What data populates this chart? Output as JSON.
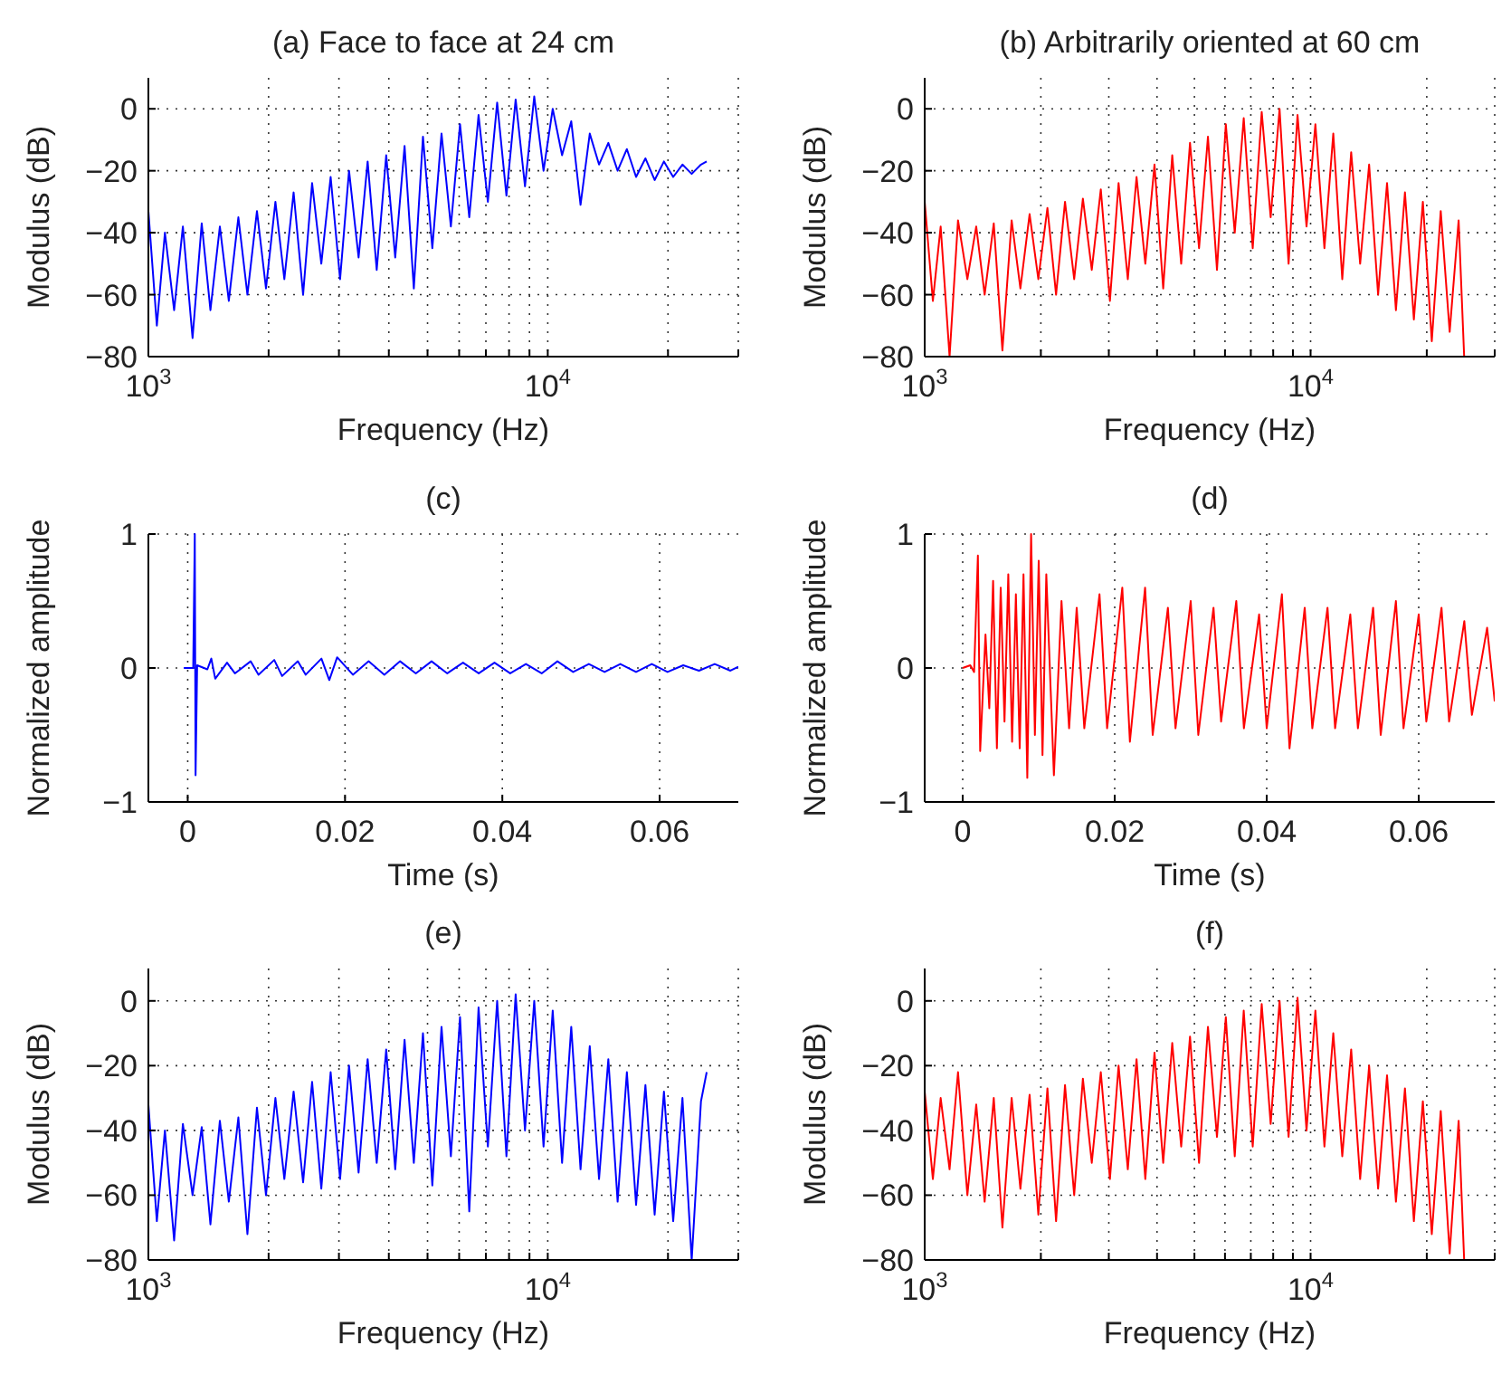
{
  "chart_data": [
    {
      "type": "line",
      "title": "(a) Face to face at 24 cm",
      "xlabel": "Frequency (Hz)",
      "ylabel": "Modulus (dB)",
      "log": "x",
      "grid": true,
      "xlim": [
        1000,
        30000
      ],
      "ylim": [
        -80,
        10
      ],
      "xticks": [
        {
          "value": 1000,
          "label": "10$^{3}$"
        },
        {
          "value": 2000,
          "label": null
        },
        {
          "value": 3000,
          "label": null
        },
        {
          "value": 4000,
          "label": null
        },
        {
          "value": 5000,
          "label": null
        },
        {
          "value": 6000,
          "label": null
        },
        {
          "value": 7000,
          "label": null
        },
        {
          "value": 8000,
          "label": null
        },
        {
          "value": 9000,
          "label": null
        },
        {
          "value": 10000,
          "label": "10$^{4}$"
        },
        {
          "value": 20000,
          "label": null
        },
        {
          "value": 30000,
          "label": null
        }
      ],
      "yticks": [
        -80,
        -60,
        -40,
        -20,
        0
      ],
      "x": [
        1000,
        1050,
        1100,
        1160,
        1220,
        1290,
        1360,
        1430,
        1510,
        1590,
        1680,
        1770,
        1870,
        1970,
        2080,
        2190,
        2310,
        2440,
        2570,
        2710,
        2860,
        3020,
        3180,
        3360,
        3540,
        3730,
        3940,
        4150,
        4380,
        4620,
        4870,
        5140,
        5420,
        5720,
        6030,
        6360,
        6710,
        7080,
        7470,
        7880,
        8310,
        8770,
        9250,
        9760,
        10290,
        10860,
        11450,
        12080,
        12740,
        13440,
        14180,
        14960,
        15780,
        16640,
        17560,
        18520,
        19540,
        20610,
        21740,
        22930,
        24190,
        25000
      ],
      "series": [
        {
          "color": "#0000ff",
          "values": [
            -33,
            -70,
            -40,
            -65,
            -38,
            -74,
            -37,
            -65,
            -38,
            -62,
            -35,
            -60,
            -33,
            -58,
            -30,
            -55,
            -27,
            -60,
            -24,
            -50,
            -22,
            -55,
            -20,
            -48,
            -17,
            -52,
            -15,
            -48,
            -12,
            -58,
            -9,
            -45,
            -8,
            -38,
            -5,
            -35,
            -2,
            -30,
            2,
            -28,
            3,
            -25,
            4,
            -20,
            0,
            -15,
            -4,
            -31,
            -8,
            -18,
            -11,
            -20,
            -13,
            -22,
            -16,
            -23,
            -17,
            -22,
            -18,
            -21,
            -18,
            -17
          ]
        }
      ]
    },
    {
      "type": "line",
      "title": "(b) Arbitrarily oriented at 60 cm",
      "xlabel": "Frequency (Hz)",
      "ylabel": "Modulus (dB)",
      "log": "x",
      "grid": true,
      "xlim": [
        1000,
        30000
      ],
      "ylim": [
        -80,
        10
      ],
      "xticks": [
        {
          "value": 1000,
          "label": "10$^{3}$"
        },
        {
          "value": 2000,
          "label": null
        },
        {
          "value": 3000,
          "label": null
        },
        {
          "value": 4000,
          "label": null
        },
        {
          "value": 5000,
          "label": null
        },
        {
          "value": 6000,
          "label": null
        },
        {
          "value": 7000,
          "label": null
        },
        {
          "value": 8000,
          "label": null
        },
        {
          "value": 9000,
          "label": null
        },
        {
          "value": 10000,
          "label": "10$^{4}$"
        },
        {
          "value": 20000,
          "label": null
        },
        {
          "value": 30000,
          "label": null
        }
      ],
      "yticks": [
        -80,
        -60,
        -40,
        -20,
        0
      ],
      "x": [
        1000,
        1050,
        1100,
        1160,
        1220,
        1290,
        1360,
        1430,
        1510,
        1590,
        1680,
        1770,
        1870,
        1970,
        2080,
        2190,
        2310,
        2440,
        2570,
        2710,
        2860,
        3020,
        3180,
        3360,
        3540,
        3730,
        3940,
        4150,
        4380,
        4620,
        4870,
        5140,
        5420,
        5720,
        6030,
        6360,
        6710,
        7080,
        7470,
        7880,
        8310,
        8770,
        9250,
        9760,
        10290,
        10860,
        11450,
        12080,
        12740,
        13440,
        14180,
        14960,
        15780,
        16640,
        17560,
        18520,
        19540,
        20610,
        21740,
        22930,
        24190,
        25000
      ],
      "series": [
        {
          "color": "#ff0000",
          "values": [
            -30,
            -62,
            -38,
            -80,
            -36,
            -55,
            -38,
            -60,
            -37,
            -78,
            -36,
            -58,
            -34,
            -55,
            -32,
            -60,
            -30,
            -55,
            -29,
            -52,
            -26,
            -62,
            -24,
            -55,
            -22,
            -50,
            -18,
            -58,
            -15,
            -50,
            -11,
            -45,
            -9,
            -52,
            -5,
            -40,
            -3,
            -45,
            -1,
            -35,
            0,
            -50,
            -2,
            -38,
            -5,
            -45,
            -8,
            -55,
            -14,
            -50,
            -18,
            -60,
            -24,
            -65,
            -27,
            -68,
            -30,
            -75,
            -33,
            -72,
            -36,
            -80
          ]
        }
      ]
    },
    {
      "type": "line",
      "title": "(c)",
      "xlabel": "Time (s)",
      "ylabel": "Normalized amplitude",
      "grid": true,
      "xlim": [
        -0.005,
        0.07
      ],
      "ylim": [
        -1,
        1
      ],
      "xticks": [
        0,
        0.02,
        0.04,
        0.06
      ],
      "yticks": [
        -1,
        0,
        1
      ],
      "series": [
        {
          "color": "#0000ff",
          "x": [
            -0.0005,
            0.0007,
            0.0009,
            0.001,
            0.0012,
            0.0025,
            0.003,
            0.0035,
            0.005,
            0.006,
            0.008,
            0.009,
            0.011,
            0.012,
            0.014,
            0.015,
            0.017,
            0.018,
            0.019,
            0.021,
            0.023,
            0.025,
            0.027,
            0.029,
            0.031,
            0.033,
            0.035,
            0.037,
            0.039,
            0.041,
            0.043,
            0.045,
            0.047,
            0.049,
            0.051,
            0.053,
            0.055,
            0.057,
            0.059,
            0.061,
            0.063,
            0.065,
            0.067,
            0.069,
            0.07
          ],
          "values": [
            0,
            0,
            1,
            -0.8,
            0.02,
            -0.01,
            0.07,
            -0.08,
            0.04,
            -0.04,
            0.05,
            -0.05,
            0.06,
            -0.06,
            0.05,
            -0.05,
            0.07,
            -0.09,
            0.08,
            -0.05,
            0.05,
            -0.05,
            0.05,
            -0.04,
            0.05,
            -0.04,
            0.04,
            -0.04,
            0.04,
            -0.04,
            0.03,
            -0.04,
            0.05,
            -0.03,
            0.03,
            -0.03,
            0.03,
            -0.03,
            0.03,
            -0.03,
            0.02,
            -0.02,
            0.03,
            -0.02,
            0.01
          ]
        }
      ]
    },
    {
      "type": "line",
      "title": "(d)",
      "xlabel": "Time (s)",
      "ylabel": "Normalized amplitude",
      "grid": true,
      "xlim": [
        -0.005,
        0.07
      ],
      "ylim": [
        -1,
        1
      ],
      "xticks": [
        0,
        0.02,
        0.04,
        0.06
      ],
      "yticks": [
        -1,
        0,
        1
      ],
      "series": [
        {
          "color": "#ff0000",
          "x": [
            0,
            0.001,
            0.0015,
            0.002,
            0.0023,
            0.003,
            0.0035,
            0.004,
            0.0045,
            0.005,
            0.0055,
            0.006,
            0.0065,
            0.007,
            0.0075,
            0.008,
            0.0085,
            0.009,
            0.0095,
            0.01,
            0.0105,
            0.011,
            0.012,
            0.013,
            0.014,
            0.015,
            0.016,
            0.018,
            0.019,
            0.021,
            0.022,
            0.024,
            0.025,
            0.027,
            0.028,
            0.03,
            0.031,
            0.033,
            0.034,
            0.036,
            0.037,
            0.039,
            0.04,
            0.042,
            0.043,
            0.045,
            0.046,
            0.048,
            0.049,
            0.051,
            0.052,
            0.054,
            0.055,
            0.057,
            0.058,
            0.06,
            0.061,
            0.063,
            0.064,
            0.066,
            0.067,
            0.069,
            0.07
          ],
          "values": [
            0,
            0.02,
            -0.03,
            0.84,
            -0.62,
            0.25,
            -0.3,
            0.65,
            -0.6,
            0.6,
            -0.4,
            0.7,
            -0.55,
            0.55,
            -0.6,
            0.7,
            -0.82,
            1,
            -0.5,
            0.8,
            -0.65,
            0.7,
            -0.8,
            0.5,
            -0.45,
            0.45,
            -0.45,
            0.55,
            -0.45,
            0.6,
            -0.55,
            0.6,
            -0.5,
            0.45,
            -0.45,
            0.5,
            -0.5,
            0.45,
            -0.4,
            0.5,
            -0.45,
            0.4,
            -0.45,
            0.55,
            -0.6,
            0.45,
            -0.45,
            0.45,
            -0.45,
            0.4,
            -0.45,
            0.45,
            -0.5,
            0.5,
            -0.45,
            0.4,
            -0.4,
            0.45,
            -0.4,
            0.35,
            -0.35,
            0.3,
            -0.25
          ]
        }
      ]
    },
    {
      "type": "line",
      "title": "(e)",
      "xlabel": "Frequency (Hz)",
      "ylabel": "Modulus (dB)",
      "log": "x",
      "grid": true,
      "xlim": [
        1000,
        30000
      ],
      "ylim": [
        -80,
        10
      ],
      "xticks": [
        {
          "value": 1000,
          "label": "10$^{3}$"
        },
        {
          "value": 2000,
          "label": null
        },
        {
          "value": 3000,
          "label": null
        },
        {
          "value": 4000,
          "label": null
        },
        {
          "value": 5000,
          "label": null
        },
        {
          "value": 6000,
          "label": null
        },
        {
          "value": 7000,
          "label": null
        },
        {
          "value": 8000,
          "label": null
        },
        {
          "value": 9000,
          "label": null
        },
        {
          "value": 10000,
          "label": "10$^{4}$"
        },
        {
          "value": 20000,
          "label": null
        },
        {
          "value": 30000,
          "label": null
        }
      ],
      "yticks": [
        -80,
        -60,
        -40,
        -20,
        0
      ],
      "x": [
        1000,
        1050,
        1100,
        1160,
        1220,
        1290,
        1360,
        1430,
        1510,
        1590,
        1680,
        1770,
        1870,
        1970,
        2080,
        2190,
        2310,
        2440,
        2570,
        2710,
        2860,
        3020,
        3180,
        3360,
        3540,
        3730,
        3940,
        4150,
        4380,
        4620,
        4870,
        5140,
        5420,
        5720,
        6030,
        6360,
        6710,
        7080,
        7470,
        7880,
        8310,
        8770,
        9250,
        9760,
        10290,
        10860,
        11450,
        12080,
        12740,
        13440,
        14180,
        14960,
        15780,
        16640,
        17560,
        18520,
        19540,
        20610,
        21740,
        22930,
        24190,
        25000
      ],
      "series": [
        {
          "color": "#0000ff",
          "values": [
            -32,
            -68,
            -40,
            -74,
            -38,
            -60,
            -39,
            -69,
            -37,
            -62,
            -36,
            -72,
            -33,
            -60,
            -30,
            -55,
            -28,
            -56,
            -25,
            -58,
            -22,
            -55,
            -20,
            -53,
            -18,
            -50,
            -15,
            -52,
            -12,
            -50,
            -10,
            -57,
            -8,
            -48,
            -5,
            -65,
            -2,
            -45,
            0,
            -48,
            2,
            -40,
            0,
            -45,
            -3,
            -50,
            -8,
            -52,
            -14,
            -55,
            -18,
            -62,
            -22,
            -63,
            -26,
            -66,
            -28,
            -68,
            -30,
            -80,
            -31,
            -22
          ]
        }
      ]
    },
    {
      "type": "line",
      "title": "(f)",
      "xlabel": "Frequency (Hz)",
      "ylabel": "Modulus (dB)",
      "log": "x",
      "grid": true,
      "xlim": [
        1000,
        30000
      ],
      "ylim": [
        -80,
        10
      ],
      "xticks": [
        {
          "value": 1000,
          "label": "10$^{3}$"
        },
        {
          "value": 2000,
          "label": null
        },
        {
          "value": 3000,
          "label": null
        },
        {
          "value": 4000,
          "label": null
        },
        {
          "value": 5000,
          "label": null
        },
        {
          "value": 6000,
          "label": null
        },
        {
          "value": 7000,
          "label": null
        },
        {
          "value": 8000,
          "label": null
        },
        {
          "value": 9000,
          "label": null
        },
        {
          "value": 10000,
          "label": "10$^{4}$"
        },
        {
          "value": 20000,
          "label": null
        },
        {
          "value": 30000,
          "label": null
        }
      ],
      "yticks": [
        -80,
        -60,
        -40,
        -20,
        0
      ],
      "x": [
        1000,
        1050,
        1100,
        1160,
        1220,
        1290,
        1360,
        1430,
        1510,
        1590,
        1680,
        1770,
        1870,
        1970,
        2080,
        2190,
        2310,
        2440,
        2570,
        2710,
        2860,
        3020,
        3180,
        3360,
        3540,
        3730,
        3940,
        4150,
        4380,
        4620,
        4870,
        5140,
        5420,
        5720,
        6030,
        6360,
        6710,
        7080,
        7470,
        7880,
        8310,
        8770,
        9250,
        9760,
        10290,
        10860,
        11450,
        12080,
        12740,
        13440,
        14180,
        14960,
        15780,
        16640,
        17560,
        18520,
        19540,
        20610,
        21740,
        22930,
        24190,
        25000
      ],
      "series": [
        {
          "color": "#ff0000",
          "values": [
            -28,
            -55,
            -30,
            -52,
            -22,
            -60,
            -32,
            -62,
            -30,
            -70,
            -30,
            -58,
            -29,
            -66,
            -27,
            -68,
            -26,
            -60,
            -24,
            -50,
            -22,
            -55,
            -20,
            -52,
            -18,
            -55,
            -16,
            -50,
            -13,
            -45,
            -11,
            -50,
            -8,
            -42,
            -5,
            -48,
            -3,
            -45,
            -1,
            -38,
            0,
            -42,
            1,
            -40,
            -3,
            -45,
            -10,
            -48,
            -15,
            -55,
            -20,
            -58,
            -23,
            -62,
            -27,
            -68,
            -31,
            -72,
            -34,
            -78,
            -37,
            -80
          ]
        }
      ]
    }
  ]
}
